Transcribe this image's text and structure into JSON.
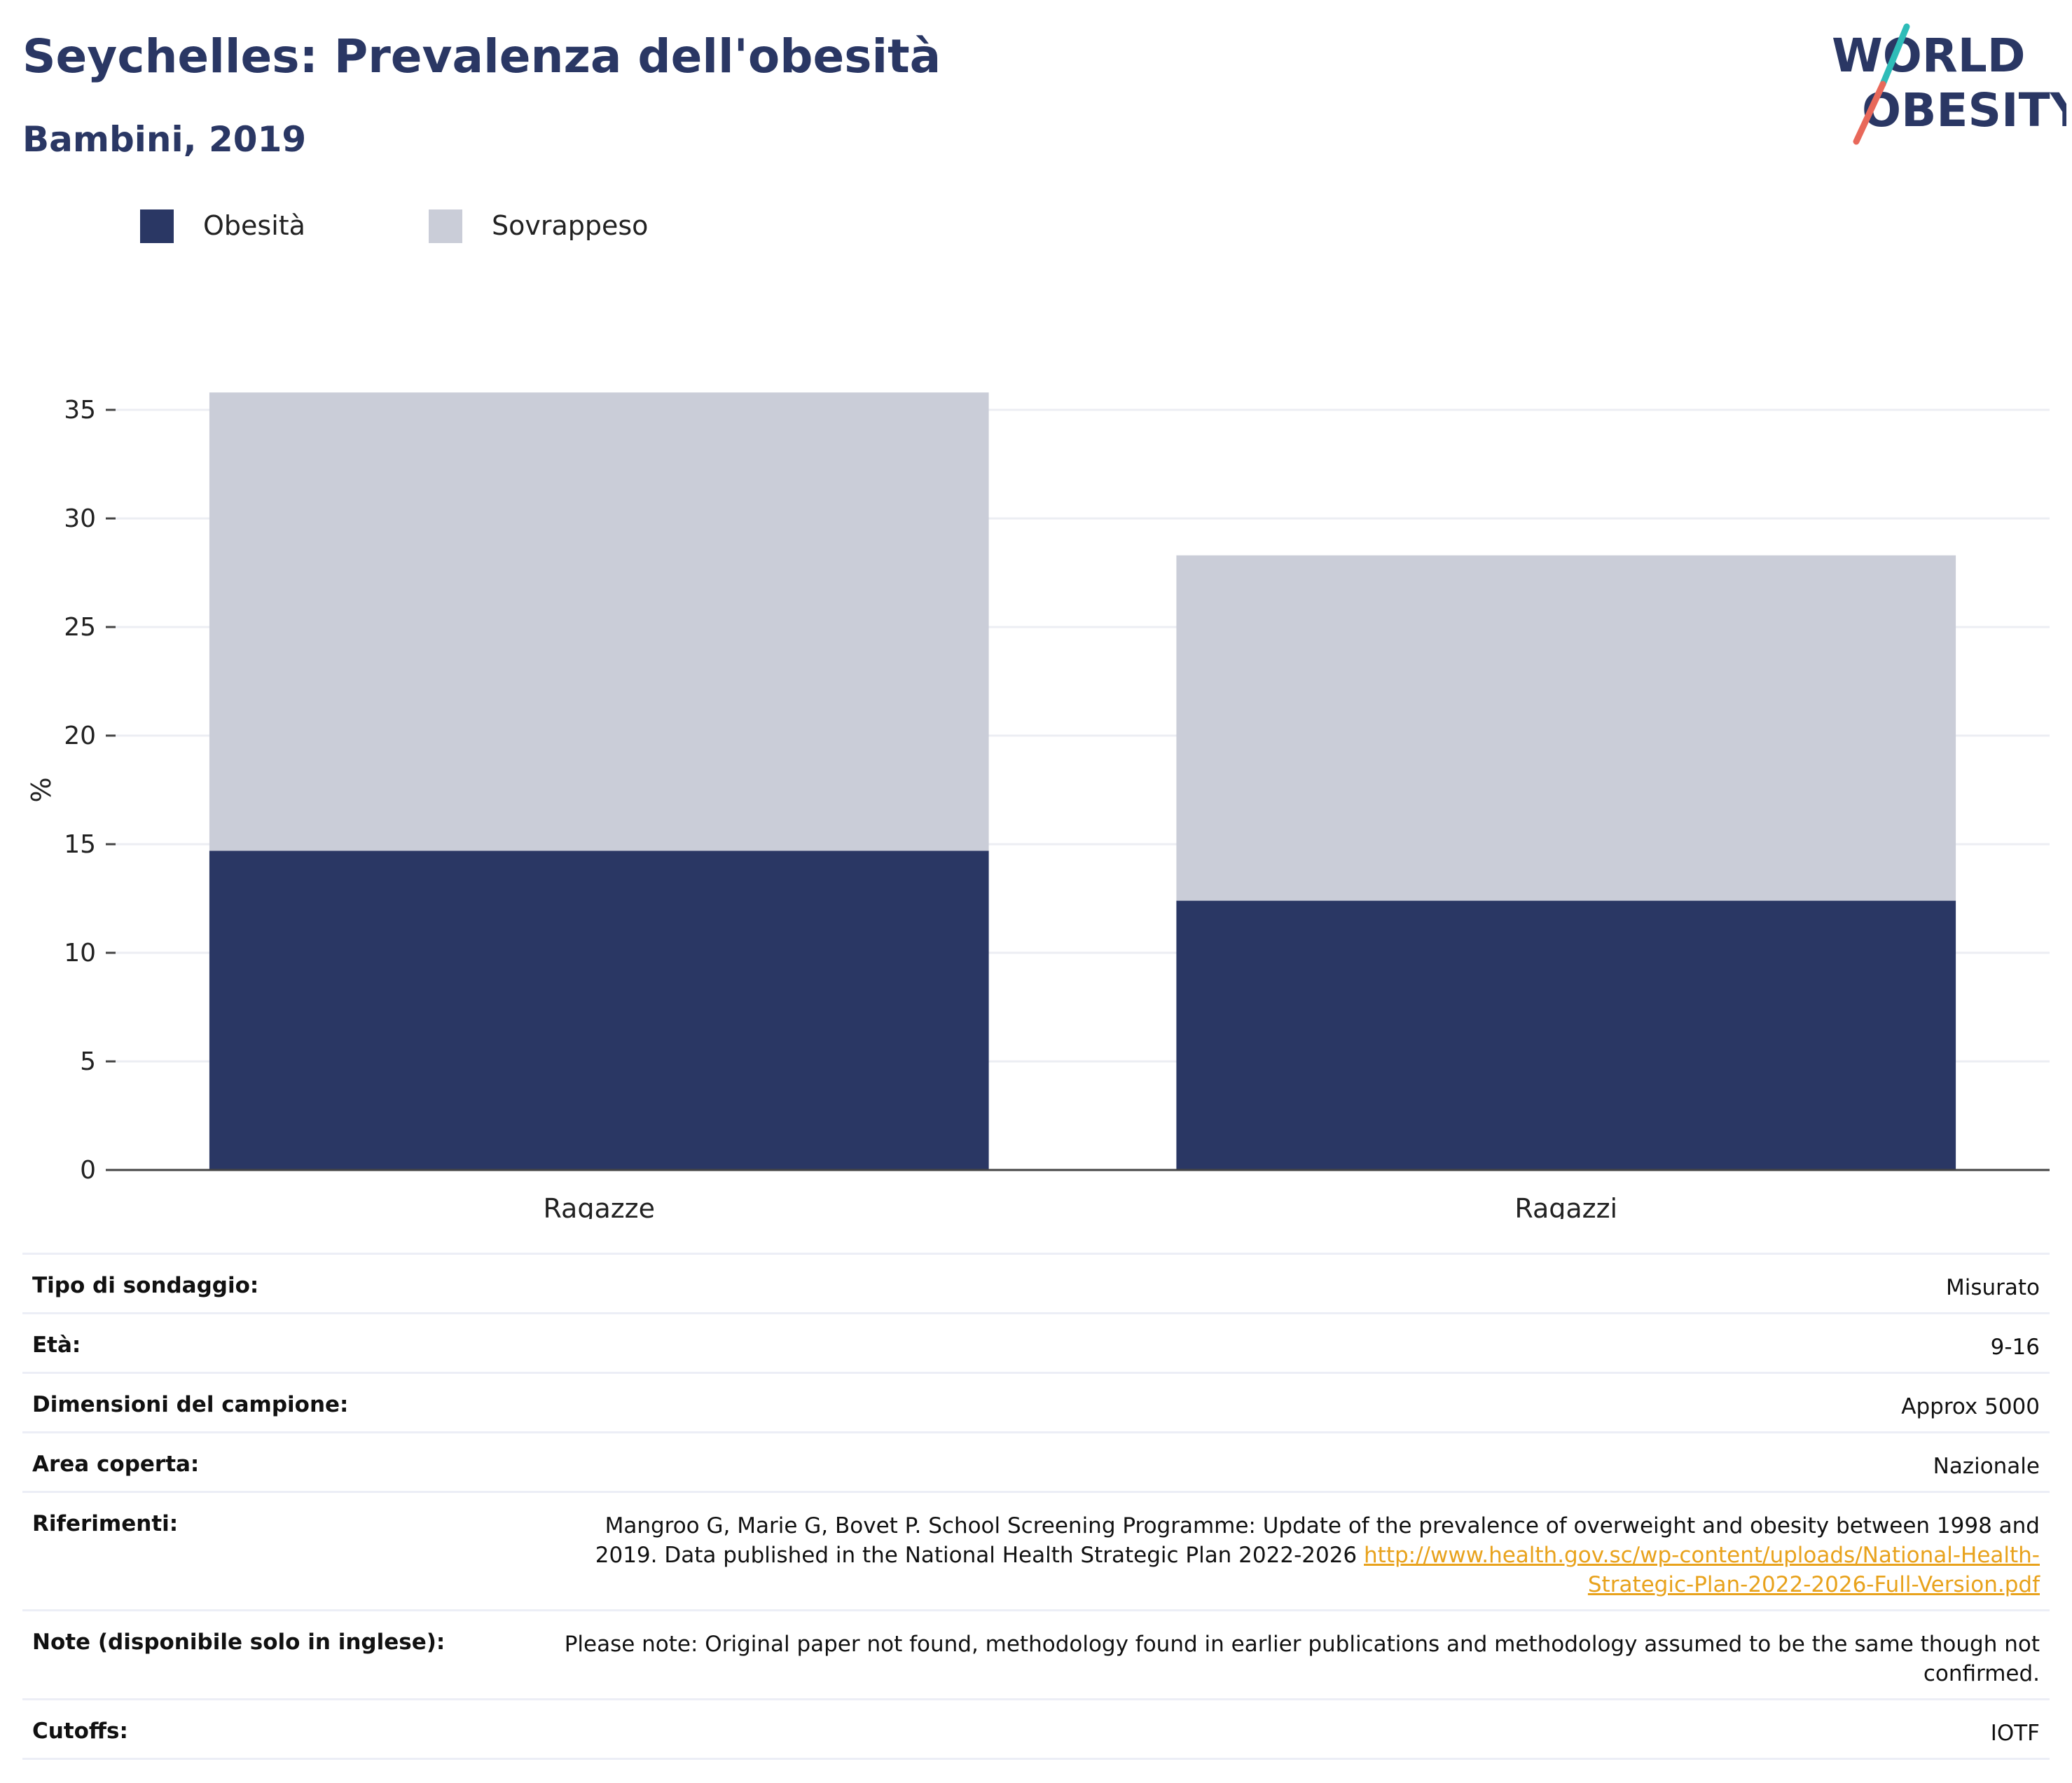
{
  "header": {
    "title": "Seychelles: Prevalenza dell'obesità",
    "subtitle": "Bambini, 2019",
    "logo_line1": "WORLD",
    "logo_line2": "OBESITY"
  },
  "colors": {
    "obesity": "#2a3764",
    "overweight": "#cacdd8",
    "title": "#2a3764",
    "link": "#e8a21c",
    "logo_teal": "#2ebcb8",
    "logo_coral": "#e8685a"
  },
  "chart_data": {
    "type": "bar",
    "stacked": true,
    "categories": [
      "Ragazze",
      "Ragazzi"
    ],
    "series": [
      {
        "name": "Obesità",
        "values": [
          14.7,
          12.4
        ],
        "color": "#2a3764"
      },
      {
        "name": "Sovrappeso",
        "values": [
          21.1,
          15.9
        ],
        "color": "#cacdd8"
      }
    ],
    "ylabel": "%",
    "xlabel": "",
    "ylim": [
      0,
      37
    ],
    "yticks": [
      0,
      5,
      10,
      15,
      20,
      25,
      30,
      35
    ],
    "grid": true,
    "legend_position": "top-left"
  },
  "info": [
    {
      "label": "Tipo di sondaggio:",
      "value": "Misurato"
    },
    {
      "label": "Età:",
      "value": "9-16"
    },
    {
      "label": "Dimensioni del campione:",
      "value": "Approx 5000"
    },
    {
      "label": "Area coperta:",
      "value": "Nazionale"
    },
    {
      "label": "Riferimenti:",
      "value": "Mangroo G, Marie G, Bovet P. School Screening Programme: Update of the prevalence of overweight and obesity between 1998 and 2019. Data published in the National Health Strategic Plan 2022-2026",
      "link": "http://www.health.gov.sc/wp-content/uploads/National-Health-Strategic-Plan-2022-2026-Full-Version.pdf"
    },
    {
      "label": "Note (disponibile solo in inglese):",
      "value": "Please note: Original paper not found, methodology found in earlier publications and methodology assumed to be the same though not confirmed."
    },
    {
      "label": "Cutoffs:",
      "value": "IOTF"
    }
  ]
}
